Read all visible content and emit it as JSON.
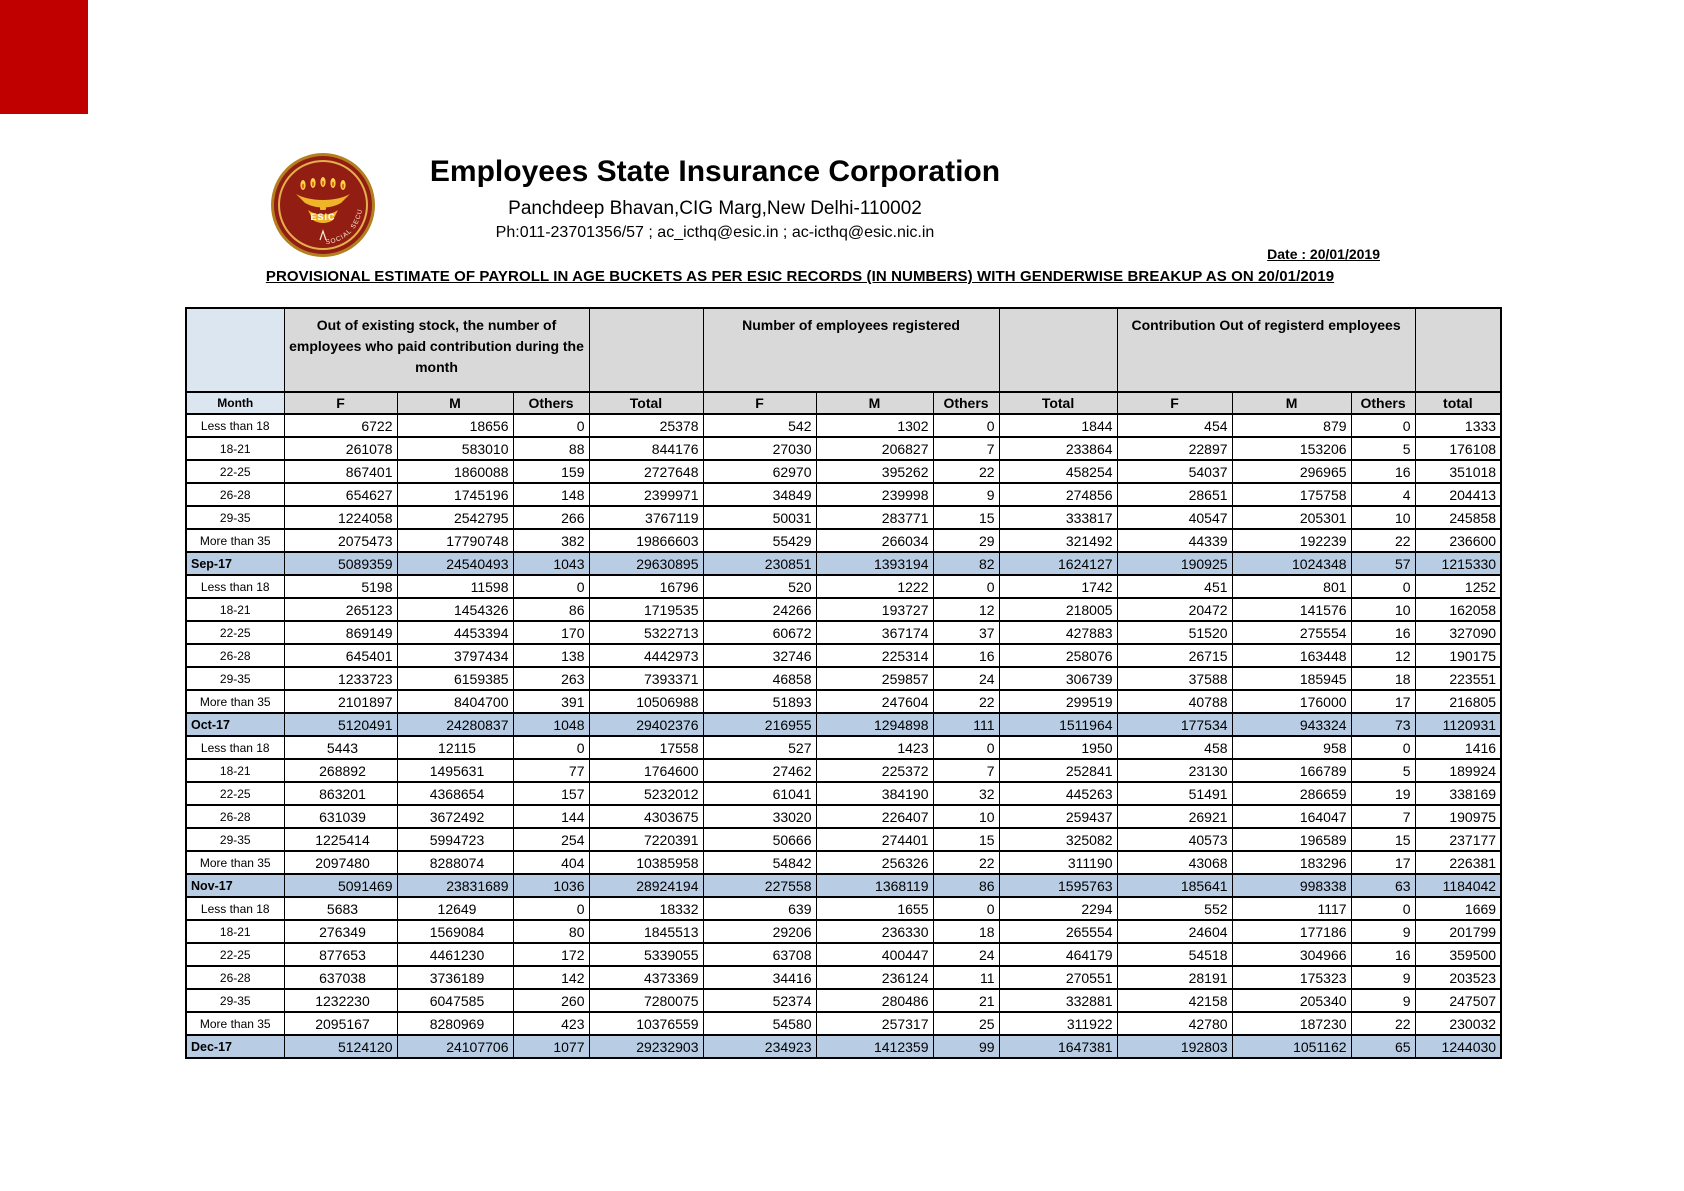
{
  "colors": {
    "corner_red": "#c00000",
    "seal_maroon": "#921d12",
    "seal_gold": "#e3a62f",
    "header_grey": "#d9d9d9",
    "month_blue": "#dce6f1",
    "total_row_blue": "#b8cce4"
  },
  "header": {
    "org_name": "Employees State Insurance Corporation",
    "address_line": "Panchdeep Bhavan,CIG Marg,New Delhi-110002",
    "contact_line": "Ph:011-23701356/57 ;  ac_icthq@esic.in ; ac-icthq@esic.nic.in",
    "date_label": "Date : 20/01/2019",
    "doc_title": "PROVISIONAL ESTIMATE OF PAYROLL IN AGE BUCKETS AS PER ESIC RECORDS (IN NUMBERS) WITH GENDERWISE BREAKUP AS ON 20/01/2019",
    "logo": {
      "acronym": "ESIC",
      "ring_text_right": "SOCIAL SECURITY"
    }
  },
  "table": {
    "group_headers": [
      "Out of existing stock, the number of employees who paid contribution during the month",
      "Number of employees registered",
      "Contribution  Out of  registerd employees"
    ],
    "column_headers": [
      "Month",
      "F",
      "M",
      "Others",
      "Total",
      "F",
      "M",
      "Others",
      "Total",
      "F",
      "M",
      "Others",
      "total"
    ],
    "blocks": [
      {
        "month_total_label": "Sep-17",
        "fm_alignment": "right",
        "rows": [
          {
            "label": "Less than 18",
            "values": [
              6722,
              18656,
              0,
              25378,
              542,
              1302,
              0,
              1844,
              454,
              879,
              0,
              1333
            ]
          },
          {
            "label": "18-21",
            "values": [
              261078,
              583010,
              88,
              844176,
              27030,
              206827,
              7,
              233864,
              22897,
              153206,
              5,
              176108
            ]
          },
          {
            "label": "22-25",
            "values": [
              867401,
              1860088,
              159,
              2727648,
              62970,
              395262,
              22,
              458254,
              54037,
              296965,
              16,
              351018
            ]
          },
          {
            "label": "26-28",
            "values": [
              654627,
              1745196,
              148,
              2399971,
              34849,
              239998,
              9,
              274856,
              28651,
              175758,
              4,
              204413
            ]
          },
          {
            "label": "29-35",
            "values": [
              1224058,
              2542795,
              266,
              3767119,
              50031,
              283771,
              15,
              333817,
              40547,
              205301,
              10,
              245858
            ]
          },
          {
            "label": "More than 35",
            "values": [
              2075473,
              17790748,
              382,
              19866603,
              55429,
              266034,
              29,
              321492,
              44339,
              192239,
              22,
              236600
            ]
          }
        ],
        "total_values": [
          5089359,
          24540493,
          1043,
          29630895,
          230851,
          1393194,
          82,
          1624127,
          190925,
          1024348,
          57,
          1215330
        ]
      },
      {
        "month_total_label": "Oct-17",
        "fm_alignment": "right",
        "rows": [
          {
            "label": "Less than 18",
            "values": [
              5198,
              11598,
              0,
              16796,
              520,
              1222,
              0,
              1742,
              451,
              801,
              0,
              1252
            ]
          },
          {
            "label": "18-21",
            "values": [
              265123,
              1454326,
              86,
              1719535,
              24266,
              193727,
              12,
              218005,
              20472,
              141576,
              10,
              162058
            ]
          },
          {
            "label": "22-25",
            "values": [
              869149,
              4453394,
              170,
              5322713,
              60672,
              367174,
              37,
              427883,
              51520,
              275554,
              16,
              327090
            ]
          },
          {
            "label": "26-28",
            "values": [
              645401,
              3797434,
              138,
              4442973,
              32746,
              225314,
              16,
              258076,
              26715,
              163448,
              12,
              190175
            ]
          },
          {
            "label": "29-35",
            "values": [
              1233723,
              6159385,
              263,
              7393371,
              46858,
              259857,
              24,
              306739,
              37588,
              185945,
              18,
              223551
            ]
          },
          {
            "label": "More than 35",
            "values": [
              2101897,
              8404700,
              391,
              10506988,
              51893,
              247604,
              22,
              299519,
              40788,
              176000,
              17,
              216805
            ]
          }
        ],
        "total_values": [
          5120491,
          24280837,
          1048,
          29402376,
          216955,
          1294898,
          111,
          1511964,
          177534,
          943324,
          73,
          1120931
        ]
      },
      {
        "month_total_label": "Nov-17",
        "fm_alignment": "center",
        "rows": [
          {
            "label": "Less than 18",
            "values": [
              5443,
              12115,
              0,
              17558,
              527,
              1423,
              0,
              1950,
              458,
              958,
              0,
              1416
            ]
          },
          {
            "label": "18-21",
            "values": [
              268892,
              1495631,
              77,
              1764600,
              27462,
              225372,
              7,
              252841,
              23130,
              166789,
              5,
              189924
            ]
          },
          {
            "label": "22-25",
            "values": [
              863201,
              4368654,
              157,
              5232012,
              61041,
              384190,
              32,
              445263,
              51491,
              286659,
              19,
              338169
            ]
          },
          {
            "label": "26-28",
            "values": [
              631039,
              3672492,
              144,
              4303675,
              33020,
              226407,
              10,
              259437,
              26921,
              164047,
              7,
              190975
            ]
          },
          {
            "label": "29-35",
            "values": [
              1225414,
              5994723,
              254,
              7220391,
              50666,
              274401,
              15,
              325082,
              40573,
              196589,
              15,
              237177
            ]
          },
          {
            "label": "More than 35",
            "values": [
              2097480,
              8288074,
              404,
              10385958,
              54842,
              256326,
              22,
              311190,
              43068,
              183296,
              17,
              226381
            ]
          }
        ],
        "total_values": [
          5091469,
          23831689,
          1036,
          28924194,
          227558,
          1368119,
          86,
          1595763,
          185641,
          998338,
          63,
          1184042
        ]
      },
      {
        "month_total_label": "Dec-17",
        "fm_alignment": "center",
        "rows": [
          {
            "label": "Less than 18",
            "values": [
              5683,
              12649,
              0,
              18332,
              639,
              1655,
              0,
              2294,
              552,
              1117,
              0,
              1669
            ]
          },
          {
            "label": "18-21",
            "values": [
              276349,
              1569084,
              80,
              1845513,
              29206,
              236330,
              18,
              265554,
              24604,
              177186,
              9,
              201799
            ]
          },
          {
            "label": "22-25",
            "values": [
              877653,
              4461230,
              172,
              5339055,
              63708,
              400447,
              24,
              464179,
              54518,
              304966,
              16,
              359500
            ]
          },
          {
            "label": "26-28",
            "values": [
              637038,
              3736189,
              142,
              4373369,
              34416,
              236124,
              11,
              270551,
              28191,
              175323,
              9,
              203523
            ]
          },
          {
            "label": "29-35",
            "values": [
              1232230,
              6047585,
              260,
              7280075,
              52374,
              280486,
              21,
              332881,
              42158,
              205340,
              9,
              247507
            ]
          },
          {
            "label": "More than 35",
            "values": [
              2095167,
              8280969,
              423,
              10376559,
              54580,
              257317,
              25,
              311922,
              42780,
              187230,
              22,
              230032
            ]
          }
        ],
        "total_values": [
          5124120,
          24107706,
          1077,
          29232903,
          234923,
          1412359,
          99,
          1647381,
          192803,
          1051162,
          65,
          1244030
        ]
      }
    ]
  }
}
